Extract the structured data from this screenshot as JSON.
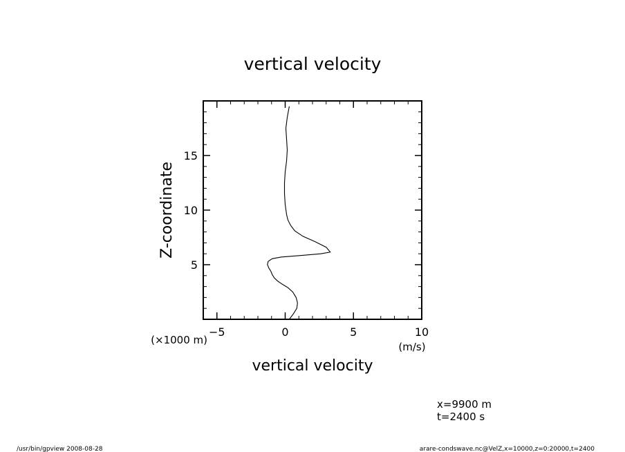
{
  "chart_data": {
    "type": "line",
    "title": "vertical velocity",
    "xlabel": "vertical velocity",
    "x_unit": "(m/s)",
    "ylabel": "Z-coordinate",
    "y_unit": "(×1000 m)",
    "xlim": [
      -6,
      10
    ],
    "ylim": [
      0,
      20
    ],
    "x_ticks": [
      -5,
      0,
      5,
      10
    ],
    "y_ticks": [
      5,
      10,
      15
    ],
    "series": [
      {
        "x": [
          0.3,
          0.6,
          0.85,
          0.9,
          0.8,
          0.55,
          0.2,
          -0.2,
          -0.55,
          -0.8,
          -0.95,
          -1.05,
          -1.2,
          -1.3,
          -1.25,
          -0.95,
          -0.3,
          1.2,
          2.6,
          3.3,
          3.0,
          2.2,
          1.3,
          0.7,
          0.4,
          0.2,
          0.1,
          0.0,
          -0.05,
          -0.05,
          0.0,
          0.1,
          0.15,
          0.1,
          0.05,
          0.15,
          0.3
        ],
        "y": [
          0.0,
          0.5,
          1.0,
          1.5,
          2.0,
          2.5,
          2.9,
          3.2,
          3.5,
          3.8,
          4.1,
          4.4,
          4.7,
          5.0,
          5.3,
          5.55,
          5.7,
          5.85,
          6.0,
          6.15,
          6.6,
          7.1,
          7.6,
          8.1,
          8.6,
          9.1,
          9.6,
          10.5,
          11.5,
          12.5,
          13.5,
          14.5,
          15.5,
          16.5,
          17.5,
          18.5,
          19.5
        ]
      }
    ]
  },
  "footer": {
    "position_x": "x=9900  m",
    "time": "t=2400  s",
    "program": "/usr/bin/gpview   2008-08-28",
    "source": "arare-condswave.nc@VelZ,x=10000,z=0:20000,t=2400"
  }
}
